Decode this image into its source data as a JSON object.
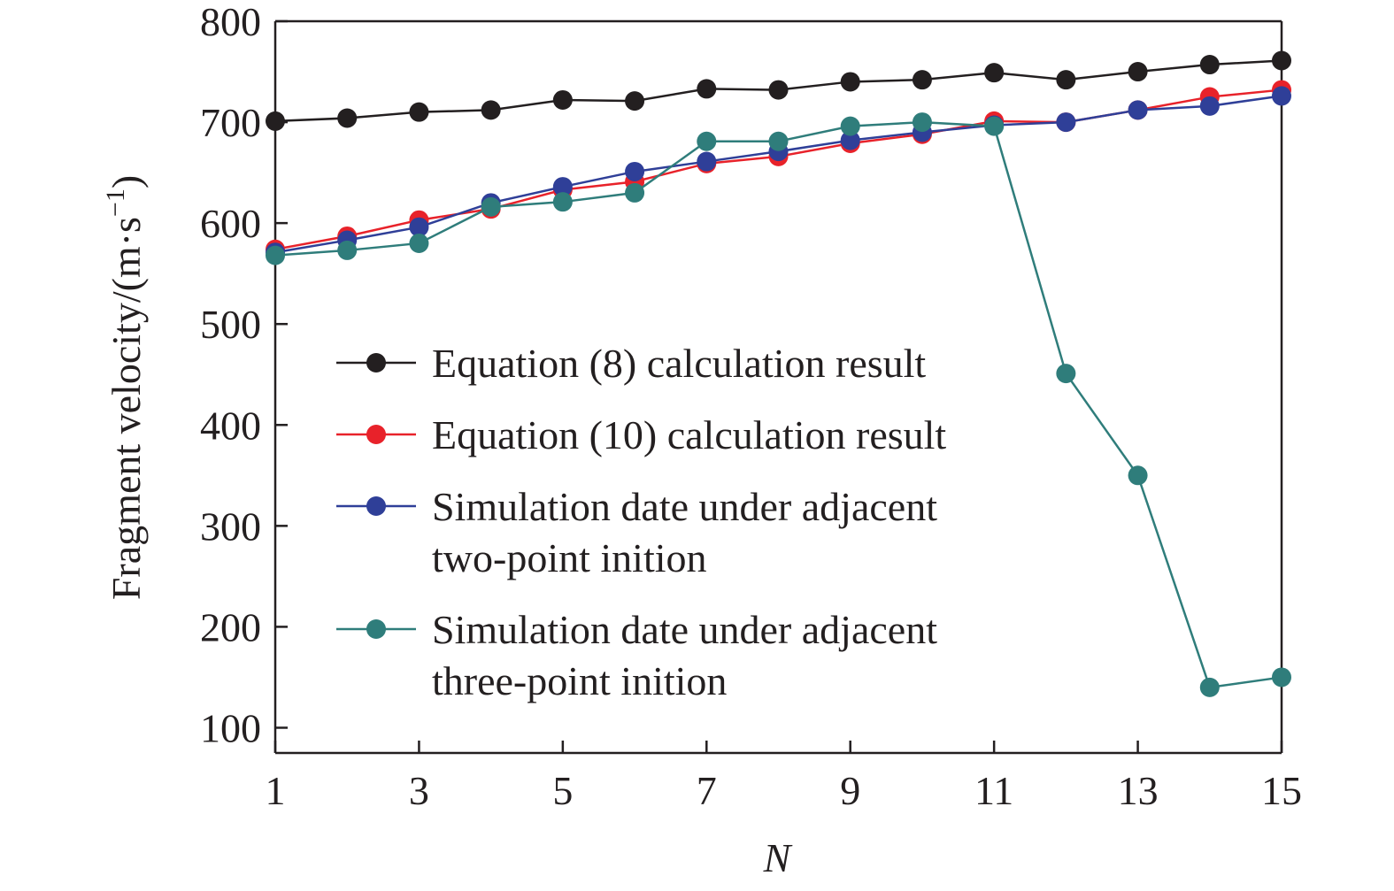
{
  "chart_data": {
    "type": "line",
    "xlabel": "N",
    "ylabel": "Fragment velocity/(m·s",
    "ylabel_sup": "−1",
    "ylabel_close": ")",
    "xlim": [
      1,
      15
    ],
    "ylim": [
      75,
      800
    ],
    "x_ticks": [
      1,
      3,
      5,
      7,
      9,
      11,
      13,
      15
    ],
    "y_ticks": [
      100,
      200,
      300,
      400,
      500,
      600,
      700,
      800
    ],
    "grid": false,
    "legend_position": "center-left",
    "x": [
      1,
      2,
      3,
      4,
      5,
      6,
      7,
      8,
      9,
      10,
      11,
      12,
      13,
      14,
      15
    ],
    "series": [
      {
        "name": "Equation (8) calculation result",
        "color": "#231f20",
        "values": [
          701,
          704,
          710,
          712,
          722,
          721,
          733,
          732,
          740,
          742,
          749,
          742,
          750,
          757,
          761
        ]
      },
      {
        "name": "Equation (10) calculation result",
        "color": "#e8222a",
        "values": [
          574,
          587,
          603,
          614,
          633,
          641,
          659,
          666,
          679,
          688,
          701,
          700,
          712,
          725,
          732
        ]
      },
      {
        "name": "Simulation date under adjacent two-point inition",
        "name_lines": [
          "Simulation date under adjacent",
          "two-point inition"
        ],
        "color": "#2f3f98",
        "values": [
          571,
          583,
          596,
          620,
          636,
          651,
          661,
          671,
          682,
          690,
          697,
          700,
          712,
          716,
          726
        ]
      },
      {
        "name": "Simulation date under adjacent three-point inition",
        "name_lines": [
          "Simulation date under adjacent",
          "three-point inition"
        ],
        "color": "#2f7d7b",
        "values": [
          568,
          573,
          580,
          616,
          621,
          630,
          681,
          681,
          696,
          700,
          696,
          451,
          350,
          140,
          150
        ]
      }
    ]
  }
}
